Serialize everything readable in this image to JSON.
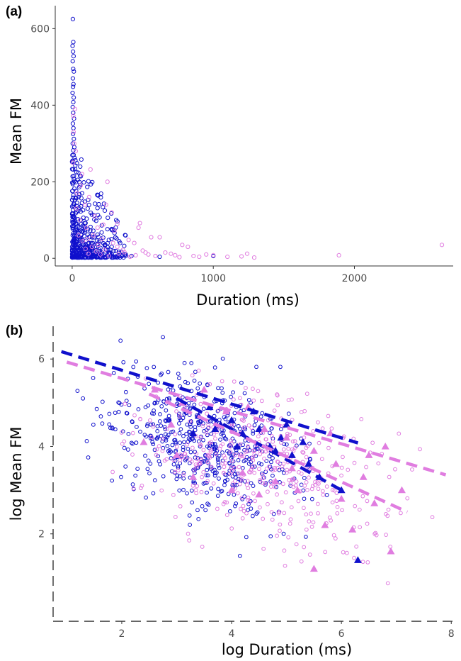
{
  "colors": {
    "blue": "#1010cc",
    "pink": "#e07de0",
    "axis": "#333333"
  },
  "chart_data": [
    {
      "type": "scatter",
      "panel_label": "(a)",
      "title": "",
      "xlabel": "Duration (ms)",
      "ylabel": "Mean FM",
      "xlim": [
        -120,
        2700
      ],
      "ylim": [
        -20,
        660
      ],
      "xticks": [
        0,
        1000,
        2000
      ],
      "xtick_labels": [
        "0",
        "1000",
        "2000"
      ],
      "yticks": [
        0,
        200,
        400,
        600
      ],
      "ytick_labels": [
        "0",
        "200",
        "400",
        "600"
      ],
      "grid": false,
      "legend": "none",
      "series": [
        {
          "color": "blue",
          "marker": "open-circle",
          "points": [
            [
              5,
              625
            ],
            [
              8,
              565
            ],
            [
              3,
              555
            ],
            [
              6,
              540
            ],
            [
              10,
              528
            ],
            [
              4,
              515
            ],
            [
              7,
              495
            ],
            [
              12,
              488
            ],
            [
              5,
              470
            ],
            [
              9,
              455
            ],
            [
              6,
              448
            ],
            [
              3,
              432
            ],
            [
              11,
              420
            ],
            [
              8,
              408
            ],
            [
              4,
              395
            ],
            [
              7,
              380
            ],
            [
              13,
              365
            ],
            [
              5,
              352
            ],
            [
              9,
              340
            ],
            [
              6,
              325
            ],
            [
              12,
              312
            ],
            [
              4,
              300
            ],
            [
              15,
              290
            ],
            [
              8,
              282
            ],
            [
              10,
              270
            ],
            [
              18,
              262
            ],
            [
              5,
              250
            ],
            [
              22,
              242
            ],
            [
              7,
              232
            ],
            [
              65,
              258
            ],
            [
              30,
              225
            ],
            [
              12,
              215
            ],
            [
              40,
              205
            ],
            [
              9,
              198
            ],
            [
              55,
              190
            ],
            [
              16,
              182
            ],
            [
              28,
              176
            ],
            [
              70,
              170
            ],
            [
              8,
              165
            ],
            [
              45,
              160
            ],
            [
              20,
              152
            ],
            [
              90,
              148
            ],
            [
              14,
              142
            ],
            [
              35,
              136
            ],
            [
              110,
              130
            ],
            [
              6,
              126
            ],
            [
              60,
              122
            ],
            [
              25,
              118
            ],
            [
              140,
              114
            ],
            [
              10,
              110
            ],
            [
              80,
              106
            ],
            [
              42,
              102
            ],
            [
              170,
              98
            ],
            [
              18,
              95
            ],
            [
              95,
              92
            ],
            [
              33,
              90
            ],
            [
              210,
              86
            ],
            [
              12,
              84
            ],
            [
              130,
              82
            ],
            [
              50,
              80
            ],
            [
              250,
              76
            ],
            [
              22,
              74
            ],
            [
              150,
              72
            ],
            [
              68,
              70
            ],
            [
              300,
              66
            ],
            [
              8,
              65
            ],
            [
              180,
              62
            ],
            [
              38,
              60
            ],
            [
              85,
              58
            ],
            [
              120,
              56
            ],
            [
              220,
              54
            ],
            [
              15,
              52
            ],
            [
              60,
              50
            ],
            [
              260,
              48
            ],
            [
              100,
              46
            ],
            [
              28,
              45
            ],
            [
              190,
              43
            ],
            [
              75,
              42
            ],
            [
              340,
              40
            ],
            [
              45,
              38
            ],
            [
              140,
              37
            ],
            [
              230,
              35
            ],
            [
              18,
              34
            ],
            [
              105,
              33
            ],
            [
              55,
              32
            ],
            [
              280,
              30
            ],
            [
              160,
              29
            ],
            [
              32,
              28
            ],
            [
              200,
              27
            ],
            [
              80,
              26
            ],
            [
              120,
              25
            ],
            [
              10,
              24
            ],
            [
              240,
              23
            ],
            [
              65,
              22
            ],
            [
              170,
              21
            ],
            [
              40,
              20
            ],
            [
              310,
              19
            ],
            [
              90,
              18
            ],
            [
              25,
              17
            ],
            [
              150,
              16
            ],
            [
              210,
              15
            ],
            [
              50,
              14
            ],
            [
              130,
              13
            ],
            [
              270,
              12
            ],
            [
              15,
              11
            ],
            [
              70,
              10
            ],
            [
              190,
              9
            ],
            [
              100,
              8
            ],
            [
              35,
              7
            ],
            [
              250,
              6
            ],
            [
              160,
              5
            ],
            [
              60,
              5
            ],
            [
              20,
              4
            ],
            [
              120,
              4
            ],
            [
              290,
              3
            ],
            [
              45,
              3
            ],
            [
              200,
              2
            ],
            [
              85,
              2
            ],
            [
              380,
              10
            ],
            [
              420,
              6
            ],
            [
              1000,
              6
            ],
            [
              620,
              4
            ],
            [
              30,
              30
            ],
            [
              15,
              60
            ],
            [
              55,
              48
            ],
            [
              75,
              85
            ],
            [
              95,
              35
            ],
            [
              110,
              62
            ],
            [
              135,
              40
            ],
            [
              18,
              100
            ],
            [
              42,
              56
            ],
            [
              66,
              28
            ],
            [
              88,
              74
            ],
            [
              12,
              44
            ],
            [
              26,
              90
            ],
            [
              48,
              12
            ],
            [
              62,
              100
            ],
            [
              38,
              70
            ],
            [
              8,
              40
            ],
            [
              5,
              80
            ],
            [
              3,
              20
            ],
            [
              7,
              12
            ],
            [
              4,
              60
            ]
          ]
        },
        {
          "color": "pink",
          "marker": "open-circle",
          "points": [
            [
              2620,
              35
            ],
            [
              1890,
              8
            ],
            [
              1240,
              12
            ],
            [
              1200,
              5
            ],
            [
              1290,
              2
            ],
            [
              1000,
              8
            ],
            [
              950,
              10
            ],
            [
              900,
              4
            ],
            [
              820,
              30
            ],
            [
              780,
              35
            ],
            [
              730,
              8
            ],
            [
              660,
              15
            ],
            [
              620,
              55
            ],
            [
              560,
              55
            ],
            [
              520,
              15
            ],
            [
              480,
              92
            ],
            [
              470,
              80
            ],
            [
              440,
              40
            ],
            [
              400,
              48
            ],
            [
              360,
              22
            ],
            [
              320,
              30
            ],
            [
              300,
              72
            ],
            [
              280,
              120
            ],
            [
              250,
              200
            ],
            [
              220,
              88
            ],
            [
              210,
              50
            ],
            [
              185,
              35
            ],
            [
              160,
              110
            ],
            [
              150,
              60
            ],
            [
              130,
              232
            ],
            [
              120,
              160
            ],
            [
              100,
              80
            ],
            [
              90,
              140
            ],
            [
              70,
              220
            ],
            [
              60,
              190
            ],
            [
              45,
              60
            ],
            [
              30,
              130
            ],
            [
              20,
              390
            ],
            [
              15,
              300
            ],
            [
              8,
              372
            ],
            [
              10,
              330
            ],
            [
              25,
              280
            ],
            [
              5,
              250
            ],
            [
              35,
              170
            ],
            [
              55,
              100
            ],
            [
              75,
              45
            ],
            [
              95,
              25
            ],
            [
              115,
              12
            ],
            [
              140,
              30
            ],
            [
              170,
              18
            ],
            [
              200,
              10
            ],
            [
              230,
              22
            ],
            [
              260,
              6
            ],
            [
              290,
              40
            ],
            [
              330,
              12
            ],
            [
              370,
              16
            ],
            [
              410,
              4
            ],
            [
              450,
              8
            ],
            [
              500,
              20
            ],
            [
              540,
              10
            ],
            [
              590,
              6
            ],
            [
              700,
              12
            ],
            [
              760,
              3
            ],
            [
              860,
              6
            ],
            [
              1100,
              4
            ],
            [
              320,
              90
            ],
            [
              240,
              140
            ],
            [
              180,
              80
            ],
            [
              110,
              50
            ]
          ]
        }
      ]
    },
    {
      "type": "scatter",
      "panel_label": "(b)",
      "title": "",
      "xlabel": "log Duration (ms)",
      "ylabel": "log Mean FM",
      "xlim": [
        0.75,
        8.1
      ],
      "ylim": [
        0.0,
        6.75
      ],
      "xticks": [
        2,
        4,
        6,
        8
      ],
      "xtick_labels": [
        "2",
        "4",
        "6",
        "8"
      ],
      "yticks": [
        2,
        4,
        6
      ],
      "ytick_labels": [
        "2",
        "4",
        "6"
      ],
      "grid": false,
      "legend": "none",
      "lines": [
        {
          "color": "blue",
          "style": "dashed",
          "x": [
            0.9,
            6.3
          ],
          "y": [
            6.17,
            4.08
          ]
        },
        {
          "color": "pink",
          "style": "dashed",
          "x": [
            1.0,
            7.9
          ],
          "y": [
            5.93,
            3.35
          ]
        },
        {
          "color": "blue",
          "style": "dashed",
          "x": [
            3.0,
            6.0
          ],
          "y": [
            5.1,
            3.0
          ]
        },
        {
          "color": "pink",
          "style": "dashed",
          "x": [
            2.5,
            7.2
          ],
          "y": [
            5.2,
            2.5
          ]
        }
      ],
      "triangles": {
        "blue": [
          [
            3.4,
            4.7
          ],
          [
            3.6,
            4.9
          ],
          [
            3.8,
            4.5
          ],
          [
            4.0,
            4.6
          ],
          [
            4.2,
            4.3
          ],
          [
            4.5,
            4.4
          ],
          [
            4.7,
            4.0
          ],
          [
            4.9,
            4.2
          ],
          [
            5.1,
            3.8
          ],
          [
            5.4,
            3.6
          ],
          [
            5.6,
            3.3
          ],
          [
            6.0,
            3.0
          ],
          [
            6.3,
            1.4
          ],
          [
            3.3,
            4.3
          ],
          [
            4.4,
            4.8
          ],
          [
            5.0,
            4.5
          ],
          [
            4.1,
            4.0
          ],
          [
            3.7,
            4.4
          ],
          [
            4.8,
            3.9
          ],
          [
            5.3,
            4.1
          ]
        ],
        "pink": [
          [
            2.6,
            5.3
          ],
          [
            3.1,
            5.0
          ],
          [
            3.5,
            5.3
          ],
          [
            3.9,
            4.8
          ],
          [
            4.3,
            4.9
          ],
          [
            4.6,
            4.4
          ],
          [
            5.0,
            4.2
          ],
          [
            5.5,
            3.9
          ],
          [
            5.9,
            3.6
          ],
          [
            6.4,
            3.3
          ],
          [
            6.6,
            2.7
          ],
          [
            6.9,
            1.6
          ],
          [
            5.5,
            1.2
          ],
          [
            5.7,
            2.2
          ],
          [
            6.2,
            2.1
          ],
          [
            4.2,
            3.4
          ],
          [
            4.8,
            3.2
          ],
          [
            5.2,
            3.0
          ],
          [
            3.0,
            3.8
          ],
          [
            2.4,
            4.1
          ],
          [
            5.8,
            4.3
          ],
          [
            6.5,
            3.8
          ],
          [
            6.8,
            4.0
          ],
          [
            7.1,
            3.0
          ],
          [
            3.3,
            3.3
          ],
          [
            4.0,
            3.0
          ],
          [
            4.5,
            2.9
          ],
          [
            5.1,
            3.5
          ],
          [
            6.0,
            2.8
          ],
          [
            2.9,
            4.5
          ]
        ]
      },
      "series": [
        {
          "color": "blue",
          "marker": "open-circle",
          "count": 560,
          "x_range": [
            0.9,
            6.2
          ],
          "noise": 0.72,
          "seed": 7
        },
        {
          "color": "pink",
          "marker": "open-circle",
          "count": 430,
          "x_range": [
            1.2,
            7.9
          ],
          "noise": 0.8,
          "seed": 31
        }
      ]
    }
  ]
}
